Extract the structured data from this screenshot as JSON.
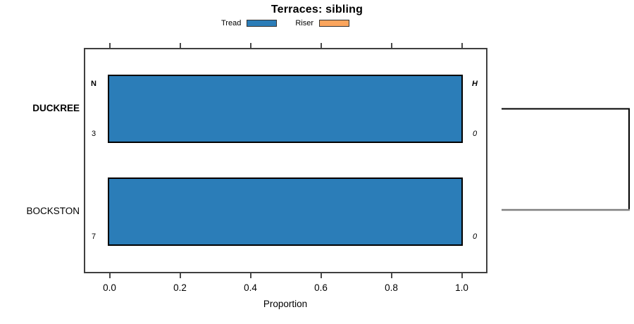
{
  "title": "Terraces: sibling",
  "x_axis": {
    "label": "Proportion",
    "tick_labels": [
      "0.0",
      "0.2",
      "0.4",
      "0.6",
      "0.8",
      "1.0"
    ]
  },
  "legend": {
    "items": [
      {
        "label": "Tread",
        "color": "#2b7db8"
      },
      {
        "label": "Riser",
        "color": "#fba55d"
      }
    ]
  },
  "chart_data": {
    "type": "bar",
    "orientation": "horizontal",
    "title": "Terraces: sibling",
    "xlabel": "Proportion",
    "xlim": [
      0.0,
      1.0
    ],
    "x_ticks": [
      0.0,
      0.2,
      0.4,
      0.6,
      0.8,
      1.0
    ],
    "grid": false,
    "legend_position": "top-center",
    "categories": [
      "DUCKREE",
      "BOCKSTON"
    ],
    "series": [
      {
        "name": "Tread",
        "color": "#2b7db8",
        "values": [
          1.0,
          1.0
        ]
      },
      {
        "name": "Riser",
        "color": "#fba55d",
        "values": [
          0.0,
          0.0
        ]
      }
    ],
    "rows": [
      {
        "category": "DUCKREE",
        "category_bold": true,
        "left_header": "N",
        "left_value": "3",
        "right_header": "H",
        "right_value": "0"
      },
      {
        "category": "BOCKSTON",
        "category_bold": false,
        "left_header": "",
        "left_value": "7",
        "right_header": "",
        "right_value": "0"
      }
    ],
    "link_bracket": {
      "between": [
        "DUCKREE",
        "BOCKSTON"
      ],
      "top_line_color": "#000000",
      "right_line_color": "#000000",
      "bottom_line_color": "#808080"
    }
  },
  "colors": {
    "bar_fill": "#2b7db8",
    "riser_fill": "#fba55d",
    "bar_border": "#000000",
    "plot_border": "#3f3f3f",
    "tick": "#4a4a4a",
    "text": "#000000"
  }
}
